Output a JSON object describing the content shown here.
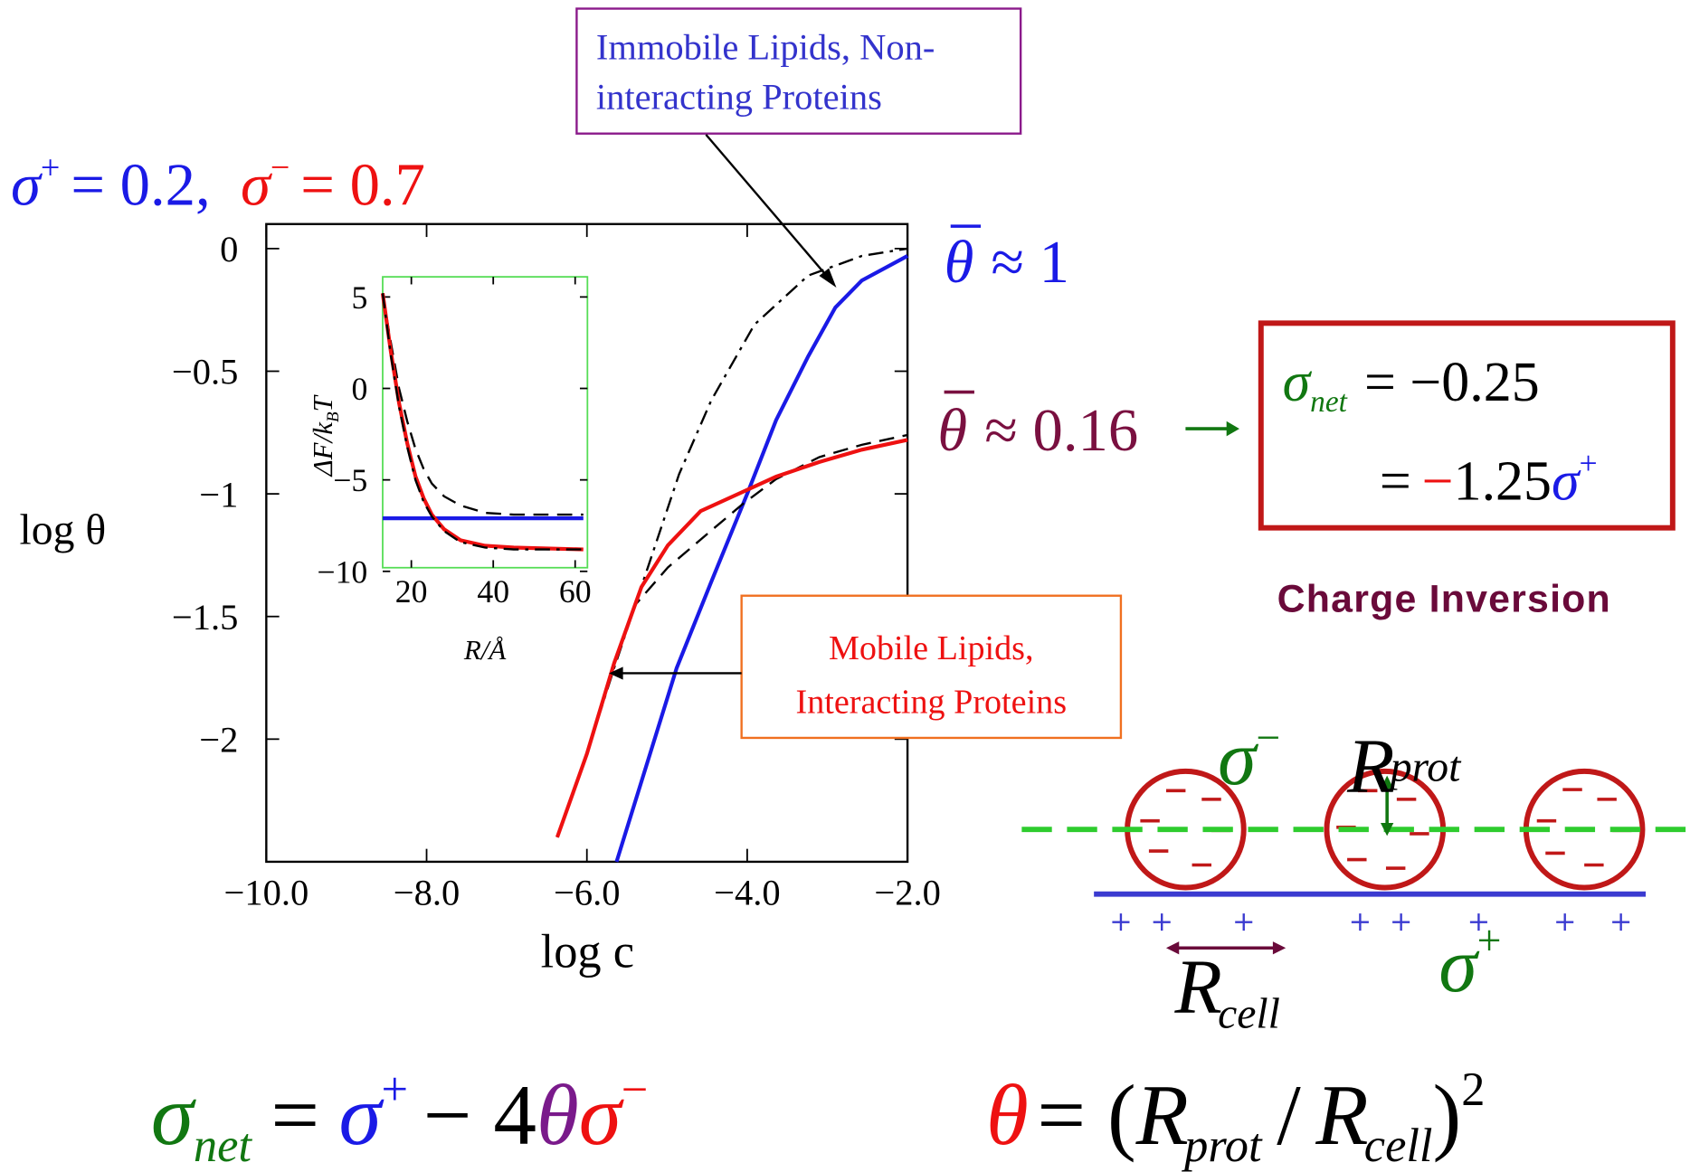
{
  "chart_data": [
    {
      "type": "line",
      "xlabel": "log c",
      "ylabel": "log θ",
      "xlim": [
        -10,
        -2
      ],
      "ylim": [
        -2.5,
        0.1
      ],
      "xticks": [
        {
          "value": -10,
          "label": "−10.0"
        },
        {
          "value": -8,
          "label": "−8.0"
        },
        {
          "value": -6,
          "label": "−6.0"
        },
        {
          "value": -4,
          "label": "−4.0"
        },
        {
          "value": -2,
          "label": "−2.0"
        }
      ],
      "yticks": [
        0,
        {
          "value": -0.5,
          "label": "−0.5"
        },
        {
          "value": -1,
          "label": "−1"
        },
        {
          "value": -1.5,
          "label": "−1.5"
        },
        {
          "value": -2,
          "label": "−2"
        }
      ],
      "frame_color": "#000000",
      "series": [
        {
          "color": "#1a1ae6",
          "dash": "solid",
          "x": [
            -5.63,
            -4.88,
            -4.45,
            -4.0,
            -3.64,
            -3.24,
            -2.9,
            -2.57,
            -2.0
          ],
          "values": [
            -2.5,
            -1.71,
            -1.36,
            -1.0,
            -0.7,
            -0.44,
            -0.24,
            -0.13,
            -0.03
          ]
        },
        {
          "color": "#000000",
          "dash": "dashdot",
          "x": [
            -6.37,
            -6.0,
            -5.66,
            -5.26,
            -4.85,
            -4.45,
            -3.91,
            -3.24,
            -2.57,
            -2.0
          ],
          "values": [
            -2.4,
            -2.06,
            -1.71,
            -1.32,
            -0.92,
            -0.62,
            -0.31,
            -0.11,
            -0.03,
            0
          ]
        },
        {
          "color": "#000000",
          "dash": "dashed",
          "x": [
            -6.37,
            -6.0,
            -5.66,
            -5.39,
            -4.99,
            -4.45,
            -4.05,
            -3.64,
            -3.1,
            -2.57,
            -2.0
          ],
          "values": [
            -2.4,
            -2.06,
            -1.7,
            -1.45,
            -1.3,
            -1.15,
            -1.04,
            -0.94,
            -0.85,
            -0.8,
            -0.76
          ]
        },
        {
          "color": "#ee1111",
          "dash": "solid",
          "x": [
            -6.37,
            -6.0,
            -5.66,
            -5.32,
            -4.99,
            -4.58,
            -4.11,
            -3.64,
            -3.1,
            -2.57,
            -2.0
          ],
          "values": [
            -2.4,
            -2.06,
            -1.69,
            -1.38,
            -1.21,
            -1.07,
            -1.0,
            -0.93,
            -0.87,
            -0.82,
            -0.78
          ]
        }
      ],
      "annotations": [
        [
          "Immobile Lipids, Non-",
          "interacting Proteins"
        ],
        [
          "Mobile Lipids,",
          "Interacting Proteins"
        ]
      ]
    },
    {
      "type": "line",
      "xlabel": "R/Å",
      "ylabel": [
        "ΔF/k",
        "B",
        "T"
      ],
      "xlim": [
        13,
        63
      ],
      "ylim": [
        -9.8,
        6.1
      ],
      "xticks": [
        20,
        40,
        60
      ],
      "yticks": [
        5,
        0,
        {
          "value": -5,
          "label": "−5"
        },
        {
          "value": -10,
          "label": "−10"
        }
      ],
      "frame_color": "#55dd55",
      "x": [
        13,
        15,
        17,
        19,
        21,
        23,
        25,
        28,
        32,
        38,
        45,
        62
      ],
      "series": [
        {
          "color": "#1a1ae6",
          "dash": "solid",
          "values": [
            -7.1,
            -7.1,
            -7.1,
            -7.1,
            -7.1,
            -7.1,
            -7.1,
            -7.1,
            -7.1,
            -7.1,
            -7.1,
            -7.1
          ]
        },
        {
          "color": "#000000",
          "dash": "dashed",
          "values": [
            5.2,
            2.5,
            0,
            -1.8,
            -3.3,
            -4.4,
            -5.2,
            -5.9,
            -6.4,
            -6.8,
            -6.9,
            -6.9
          ]
        },
        {
          "color": "#ee1111",
          "dash": "solid",
          "values": [
            5.2,
            2.0,
            -0.8,
            -3.0,
            -4.8,
            -6.0,
            -6.9,
            -7.7,
            -8.3,
            -8.6,
            -8.7,
            -8.8
          ]
        },
        {
          "color": "#000000",
          "dash": "dashdot",
          "values": [
            5.2,
            1.8,
            -1.0,
            -3.2,
            -5.0,
            -6.2,
            -7.0,
            -7.8,
            -8.4,
            -8.7,
            -8.8,
            -8.8
          ]
        }
      ]
    }
  ],
  "slide": {
    "params": [
      {
        "symbol": "σ",
        "sup": "+",
        "rest": "= 0.2,"
      },
      {
        "symbol": "σ",
        "sup": "−",
        "rest": "= 0.7"
      }
    ],
    "coverage_full": {
      "symbol": "θ",
      "rest": "≈ 1"
    },
    "coverage_low": {
      "symbol": "θ",
      "rest": "≈ 0.16"
    },
    "net_charge": {
      "symbol": "σ",
      "sub": "net",
      "line1": "= −0.25",
      "line2_eq": "=",
      "line2_minus": "−",
      "line2_num": "1.25",
      "line2_symbol": "σ",
      "line2_sup": "+"
    },
    "charge_inversion": "Charge Inversion",
    "diagram": {
      "sigma_minus": {
        "symbol": "σ",
        "sup": "−"
      },
      "r_prot": {
        "symbol": "R",
        "sub": "prot"
      },
      "r_cell": {
        "symbol": "R",
        "sub": "cell"
      },
      "sigma_plus": {
        "symbol": "σ",
        "sup": "+"
      }
    },
    "formula_net": [
      "σ",
      "net",
      "=",
      "σ",
      "+",
      "− 4",
      "θ",
      "σ",
      "−"
    ],
    "formula_theta": [
      "θ",
      "= (",
      "R",
      "prot",
      "/",
      "R",
      "cell",
      ")",
      "2"
    ]
  }
}
